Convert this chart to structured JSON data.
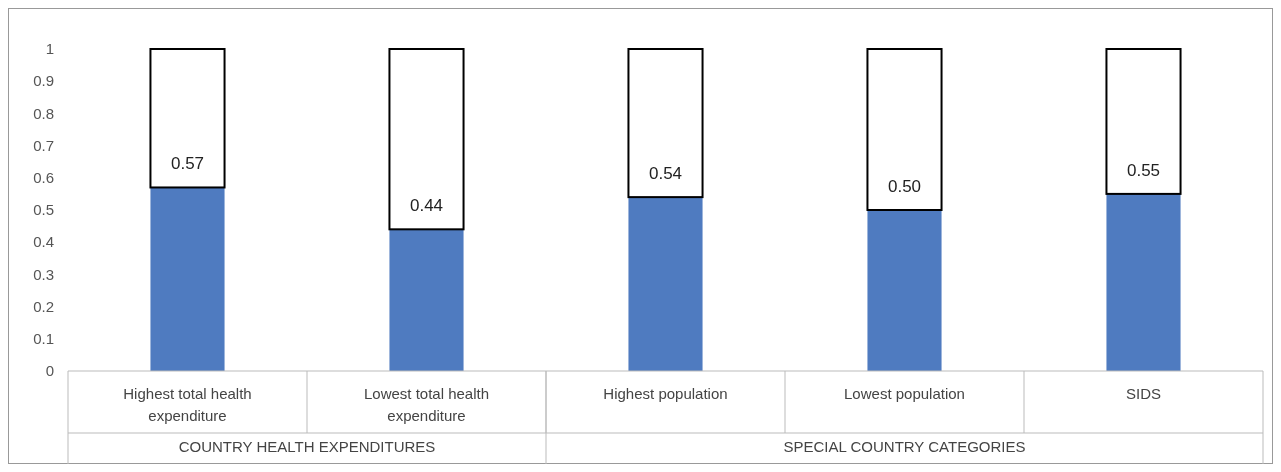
{
  "chart_data": {
    "type": "bar",
    "stacked": true,
    "categories": [
      "Highest total health expenditure",
      "Lowest total health expenditure",
      "Highest population",
      "Lowest population",
      "SIDS"
    ],
    "series": [
      {
        "color": "#4f7bc0",
        "values": [
          0.57,
          0.44,
          0.54,
          0.5,
          0.55
        ],
        "value_labels": [
          "0.57",
          "0.44",
          "0.54",
          "0.50",
          "0.55"
        ]
      },
      {
        "color": "#ffffff",
        "values": [
          0.43,
          0.56,
          0.46,
          0.5,
          0.45
        ]
      }
    ],
    "ylim": [
      0,
      1
    ],
    "yticks": [
      {
        "value": 0,
        "label": "0"
      },
      {
        "value": 0.1,
        "label": "0.1"
      },
      {
        "value": 0.2,
        "label": "0.2"
      },
      {
        "value": 0.3,
        "label": "0.3"
      },
      {
        "value": 0.4,
        "label": "0.4"
      },
      {
        "value": 0.5,
        "label": "0.5"
      },
      {
        "value": 0.6,
        "label": "0.6"
      },
      {
        "value": 0.7,
        "label": "0.7"
      },
      {
        "value": 0.8,
        "label": "0.8"
      },
      {
        "value": 0.9,
        "label": "0.9"
      },
      {
        "value": 1,
        "label": "1"
      }
    ],
    "annotations": [
      "COUNTRY HEALTH EXPENDITURES",
      "SPECIAL COUNTRY CATEGORIES"
    ]
  }
}
